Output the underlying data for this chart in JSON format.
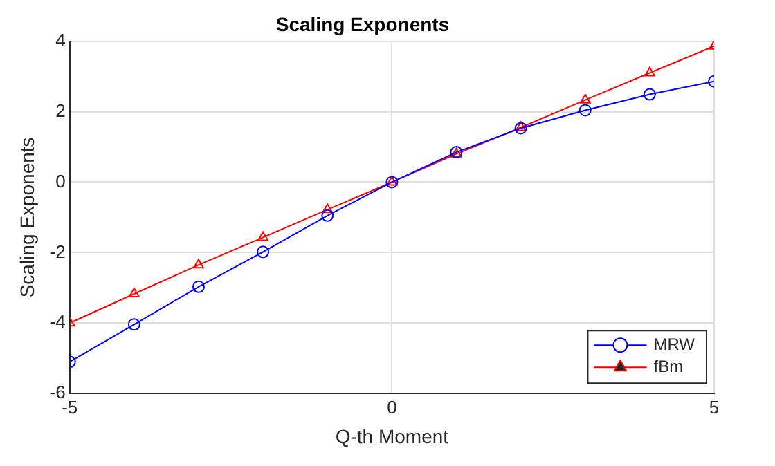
{
  "chart_data": {
    "type": "line",
    "title": "Scaling Exponents",
    "xlabel": "Q-th Moment",
    "ylabel": "Scaling Exponents",
    "x": [
      -5,
      -4,
      -3,
      -2,
      -1,
      0,
      1,
      2,
      3,
      4,
      5
    ],
    "series": [
      {
        "name": "MRW",
        "color": "#0000ff",
        "marker": "circle",
        "values": [
          -5.1,
          -4.04,
          -2.97,
          -1.98,
          -0.95,
          0,
          0.85,
          1.53,
          2.04,
          2.49,
          2.86
        ]
      },
      {
        "name": "fBm",
        "color": "#ff0000",
        "marker": "triangle",
        "values": [
          -4.0,
          -3.17,
          -2.35,
          -1.57,
          -0.78,
          0,
          0.8,
          1.55,
          2.33,
          3.1,
          3.86
        ]
      }
    ],
    "xlim": [
      -5,
      5
    ],
    "xticks": [
      -5,
      0,
      5
    ],
    "ylim": [
      -6,
      4
    ],
    "yticks": [
      -6,
      -4,
      -2,
      0,
      2,
      4
    ],
    "grid": true,
    "legend": "bottom right",
    "line_style": "solid"
  }
}
